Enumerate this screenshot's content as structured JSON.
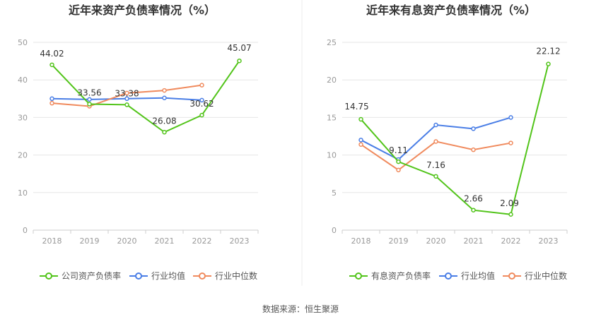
{
  "source": "数据来源：恒生聚源",
  "chart_data": [
    {
      "type": "line",
      "title": "近年来资产负债率情况（%）",
      "categories": [
        "2018",
        "2019",
        "2020",
        "2021",
        "2022",
        "2023"
      ],
      "ylim": [
        0,
        50
      ],
      "yticks": [
        0,
        10,
        20,
        30,
        40,
        50
      ],
      "ytick_labels": [
        "0",
        "10",
        "20",
        "30",
        "40",
        "50"
      ],
      "series": [
        {
          "name": "公司资产负债率",
          "color": "#52c41a",
          "values": [
            44.02,
            33.56,
            33.38,
            26.08,
            30.62,
            45.07
          ],
          "labels": [
            "44.02",
            "33.56",
            "33.38",
            "26.08",
            "30.62",
            "45.07"
          ]
        },
        {
          "name": "行业均值",
          "color": "#4a7ee6",
          "values": [
            35.0,
            34.8,
            35.0,
            35.2,
            34.6,
            null
          ]
        },
        {
          "name": "行业中位数",
          "color": "#f08a5d",
          "values": [
            33.8,
            33.0,
            36.5,
            37.2,
            38.6,
            null
          ]
        }
      ]
    },
    {
      "type": "line",
      "title": "近年来有息资产负债率情况（%）",
      "categories": [
        "2018",
        "2019",
        "2020",
        "2021",
        "2022",
        "2023"
      ],
      "ylim": [
        0,
        25
      ],
      "yticks": [
        0,
        5,
        10,
        15,
        20,
        25
      ],
      "ytick_labels": [
        "0",
        "5",
        "10",
        "15",
        "20",
        "25"
      ],
      "series": [
        {
          "name": "有息资产负债率",
          "color": "#52c41a",
          "values": [
            14.75,
            9.11,
            7.16,
            2.66,
            2.09,
            22.12
          ],
          "labels": [
            "14.75",
            "9.11",
            "7.16",
            "2.66",
            "2.09",
            "22.12"
          ]
        },
        {
          "name": "行业均值",
          "color": "#4a7ee6",
          "values": [
            12.0,
            9.4,
            14.0,
            13.5,
            15.0,
            null
          ]
        },
        {
          "name": "行业中位数",
          "color": "#f08a5d",
          "values": [
            11.4,
            8.0,
            11.8,
            10.7,
            11.6,
            null
          ]
        }
      ]
    }
  ]
}
